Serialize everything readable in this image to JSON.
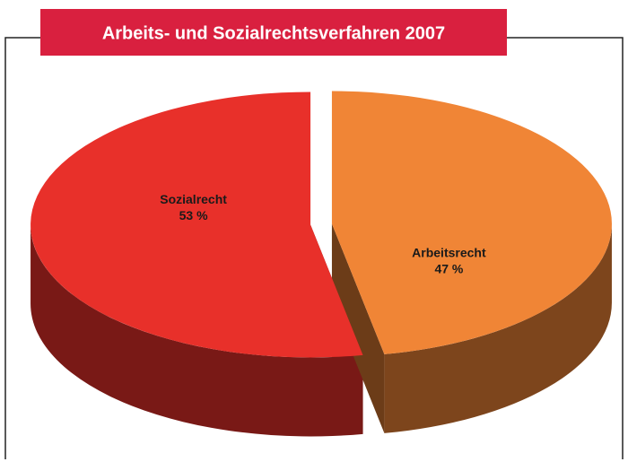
{
  "chart_data": {
    "type": "pie",
    "title": "Arbeits- und Sozialrechtsverfahren 2007",
    "categories": [
      "Sozialrecht",
      "Arbeitsrecht"
    ],
    "values": [
      53,
      47
    ],
    "value_labels": [
      "53 %",
      "47 %"
    ],
    "colors": [
      "#e8302a",
      "#f08536"
    ]
  }
}
